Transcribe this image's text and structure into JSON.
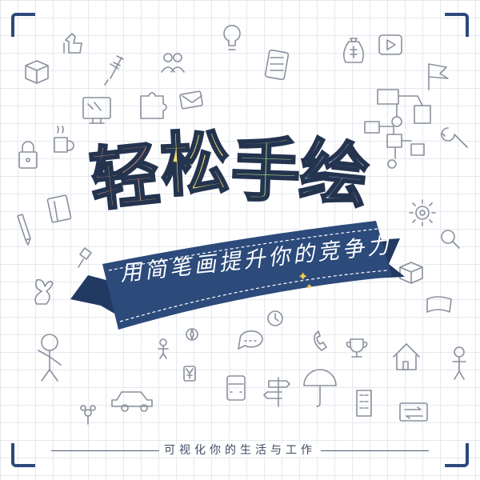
{
  "title": {
    "chars": [
      "轻",
      "松",
      "手",
      "绘"
    ],
    "colors": [
      "#f1a37a",
      "#f8dd6c",
      "#a3d07f",
      "#a6c8ee"
    ]
  },
  "ribbon": {
    "text": "用简笔画提升你的竞争力",
    "color": "#2c4a7a"
  },
  "footer": {
    "text": "可视化你的生活与工作"
  },
  "accent_colors": {
    "frame": "#2c4a7a",
    "doodle_stroke": "#8a909c",
    "sparkle": "#f3c94a"
  },
  "doodle_icons": [
    "thumbs-up-icon",
    "lightbulb-icon",
    "money-bag-icon",
    "video-icon",
    "syringe-icon",
    "people-icon",
    "calculator-icon",
    "flag-icon",
    "cube-icon",
    "monitor-icon",
    "mail-icon",
    "coffee-cup-icon",
    "lock-icon",
    "book-icon",
    "pencil-icon",
    "flowchart-icon",
    "wrench-icon",
    "gear-icon",
    "magnifier-icon",
    "pin-icon",
    "rabbit-icon",
    "clock-icon",
    "stick-figure-icon",
    "chat-bubble-icon",
    "trophy-icon",
    "house-icon",
    "car-icon",
    "bus-icon",
    "signpost-icon",
    "umbrella-icon",
    "building-icon",
    "exchange-icon",
    "box-icon"
  ]
}
